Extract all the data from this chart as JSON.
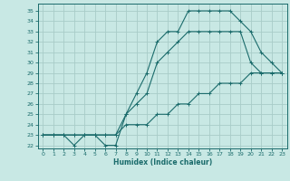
{
  "xlabel": "Humidex (Indice chaleur)",
  "bg_color": "#c8e8e4",
  "grid_color": "#a8ccc8",
  "line_color": "#1a6b6b",
  "xlim": [
    -0.5,
    23.5
  ],
  "ylim": [
    21.7,
    35.7
  ],
  "xticks": [
    0,
    1,
    2,
    3,
    4,
    5,
    6,
    7,
    8,
    9,
    10,
    11,
    12,
    13,
    14,
    15,
    16,
    17,
    18,
    19,
    20,
    21,
    22,
    23
  ],
  "yticks": [
    22,
    23,
    24,
    25,
    26,
    27,
    28,
    29,
    30,
    31,
    32,
    33,
    34,
    35
  ],
  "line1_x": [
    0,
    1,
    2,
    3,
    4,
    5,
    6,
    7,
    8,
    9,
    10,
    11,
    12,
    13,
    14,
    15,
    16,
    17,
    18,
    19,
    20,
    21,
    22,
    23
  ],
  "line1_y": [
    23,
    23,
    23,
    22,
    23,
    23,
    22,
    22,
    25,
    27,
    29,
    32,
    33,
    33,
    35,
    35,
    35,
    35,
    35,
    34,
    33,
    31,
    30,
    29
  ],
  "line2_x": [
    0,
    1,
    2,
    3,
    4,
    5,
    6,
    7,
    8,
    9,
    10,
    11,
    12,
    13,
    14,
    15,
    16,
    17,
    18,
    19,
    20,
    21,
    22,
    23
  ],
  "line2_y": [
    23,
    23,
    23,
    23,
    23,
    23,
    23,
    23,
    25,
    26,
    27,
    30,
    31,
    32,
    33,
    33,
    33,
    33,
    33,
    33,
    30,
    29,
    29,
    29
  ],
  "line3_x": [
    0,
    1,
    2,
    3,
    4,
    5,
    6,
    7,
    8,
    9,
    10,
    11,
    12,
    13,
    14,
    15,
    16,
    17,
    18,
    19,
    20,
    21,
    22,
    23
  ],
  "line3_y": [
    23,
    23,
    23,
    23,
    23,
    23,
    23,
    23,
    24,
    24,
    24,
    25,
    25,
    26,
    26,
    27,
    27,
    28,
    28,
    28,
    29,
    29,
    29,
    29
  ]
}
